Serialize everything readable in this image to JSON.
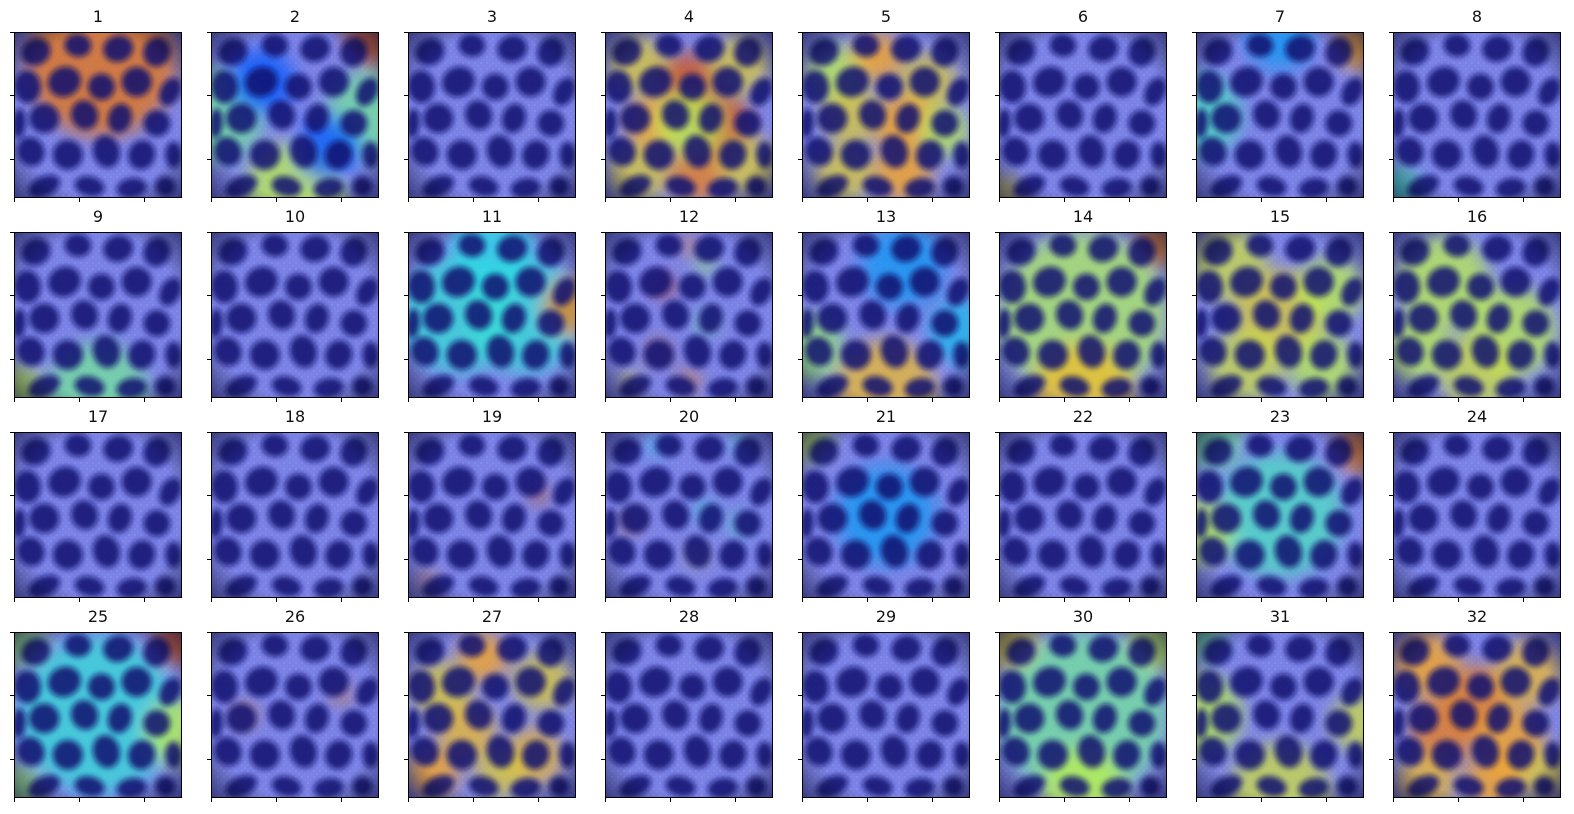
{
  "figure": {
    "panels": [
      {
        "label": "1",
        "heat": [
          [
            0.52,
            0.18,
            0.86,
            0.9
          ]
        ]
      },
      {
        "label": "2",
        "heat": [
          [
            0.04,
            0.5,
            0.5,
            0.55
          ],
          [
            0.96,
            0.5,
            0.5,
            0.55
          ],
          [
            0.5,
            0.96,
            0.6,
            0.6
          ],
          [
            0.98,
            0.03,
            0.9,
            0.35
          ],
          [
            0.3,
            0.3,
            0.2,
            0.4
          ],
          [
            0.7,
            0.7,
            0.2,
            0.4
          ]
        ]
      },
      {
        "label": "3",
        "heat": []
      },
      {
        "label": "4",
        "heat": [
          [
            0.2,
            0.2,
            0.7,
            0.35
          ],
          [
            0.5,
            0.3,
            0.9,
            0.35
          ],
          [
            0.8,
            0.2,
            0.7,
            0.35
          ],
          [
            0.3,
            0.55,
            0.8,
            0.35
          ],
          [
            0.7,
            0.55,
            0.9,
            0.35
          ],
          [
            0.2,
            0.85,
            0.7,
            0.35
          ],
          [
            0.55,
            0.85,
            0.85,
            0.35
          ],
          [
            0.85,
            0.8,
            0.7,
            0.35
          ],
          [
            0.5,
            0.55,
            0.6,
            0.4
          ]
        ]
      },
      {
        "label": "5",
        "heat": [
          [
            0.2,
            0.25,
            0.6,
            0.35
          ],
          [
            0.45,
            0.15,
            0.8,
            0.3
          ],
          [
            0.75,
            0.3,
            0.7,
            0.35
          ],
          [
            0.3,
            0.5,
            0.7,
            0.35
          ],
          [
            0.6,
            0.55,
            0.8,
            0.35
          ],
          [
            0.85,
            0.6,
            0.6,
            0.3
          ],
          [
            0.25,
            0.85,
            0.7,
            0.35
          ],
          [
            0.6,
            0.85,
            0.8,
            0.35
          ]
        ]
      },
      {
        "label": "6",
        "heat": [
          [
            0.03,
            0.97,
            0.7,
            0.2
          ]
        ]
      },
      {
        "label": "7",
        "heat": [
          [
            0.02,
            0.5,
            0.45,
            0.5
          ],
          [
            0.98,
            0.08,
            0.8,
            0.3
          ],
          [
            0.5,
            0.03,
            0.3,
            0.4
          ]
        ]
      },
      {
        "label": "8",
        "heat": [
          [
            0.02,
            0.95,
            0.45,
            0.3
          ]
        ]
      },
      {
        "label": "9",
        "heat": [
          [
            0.5,
            0.97,
            0.5,
            0.6
          ],
          [
            0.03,
            0.95,
            0.6,
            0.3
          ]
        ]
      },
      {
        "label": "10",
        "heat": []
      },
      {
        "label": "11",
        "heat": [
          [
            0.3,
            0.5,
            0.42,
            0.7
          ],
          [
            0.7,
            0.5,
            0.42,
            0.7
          ],
          [
            0.98,
            0.45,
            0.85,
            0.35
          ],
          [
            0.5,
            0.1,
            0.4,
            0.5
          ]
        ]
      },
      {
        "label": "12",
        "heat": [
          [
            0.35,
            0.33,
            0.95,
            0.12
          ],
          [
            0.5,
            0.08,
            0.85,
            0.1
          ],
          [
            0.6,
            0.2,
            0.55,
            0.12
          ],
          [
            0.6,
            0.55,
            0.5,
            0.12
          ],
          [
            0.32,
            0.72,
            0.9,
            0.12
          ],
          [
            0.5,
            0.9,
            0.85,
            0.12
          ],
          [
            0.15,
            0.9,
            0.7,
            0.12
          ]
        ]
      },
      {
        "label": "13",
        "heat": [
          [
            0.5,
            0.95,
            0.75,
            0.6
          ],
          [
            0.05,
            0.7,
            0.55,
            0.4
          ],
          [
            0.6,
            0.2,
            0.3,
            0.5
          ],
          [
            0.95,
            0.6,
            0.35,
            0.4
          ]
        ]
      },
      {
        "label": "14",
        "heat": [
          [
            0.5,
            0.5,
            0.58,
            1.0
          ],
          [
            0.98,
            0.05,
            0.85,
            0.3
          ],
          [
            0.5,
            0.97,
            0.75,
            0.6
          ]
        ]
      },
      {
        "label": "15",
        "heat": [
          [
            0.2,
            0.2,
            0.65,
            0.45
          ],
          [
            0.5,
            0.5,
            0.7,
            0.55
          ],
          [
            0.8,
            0.35,
            0.6,
            0.4
          ],
          [
            0.3,
            0.8,
            0.65,
            0.45
          ],
          [
            0.75,
            0.8,
            0.6,
            0.4
          ]
        ]
      },
      {
        "label": "16",
        "heat": [
          [
            0.3,
            0.3,
            0.6,
            0.55
          ],
          [
            0.7,
            0.6,
            0.6,
            0.55
          ],
          [
            0.5,
            0.85,
            0.65,
            0.45
          ],
          [
            0.15,
            0.7,
            0.6,
            0.4
          ]
        ]
      },
      {
        "label": "17",
        "heat": []
      },
      {
        "label": "18",
        "heat": []
      },
      {
        "label": "19",
        "heat": [
          [
            0.78,
            0.38,
            0.9,
            0.1
          ],
          [
            0.12,
            0.9,
            0.85,
            0.1
          ]
        ]
      },
      {
        "label": "20",
        "heat": [
          [
            0.6,
            0.48,
            0.42,
            0.12
          ],
          [
            0.8,
            0.56,
            0.45,
            0.12
          ],
          [
            0.15,
            0.55,
            0.85,
            0.1
          ],
          [
            0.55,
            0.75,
            0.7,
            0.1
          ],
          [
            0.8,
            0.06,
            0.45,
            0.1
          ],
          [
            0.3,
            0.08,
            0.4,
            0.1
          ]
        ]
      },
      {
        "label": "21",
        "heat": [
          [
            0.05,
            0.05,
            0.6,
            0.25
          ],
          [
            0.5,
            0.5,
            0.3,
            0.6
          ]
        ]
      },
      {
        "label": "22",
        "heat": []
      },
      {
        "label": "23",
        "heat": [
          [
            0.5,
            0.5,
            0.45,
            0.75
          ],
          [
            0.02,
            0.6,
            0.6,
            0.4
          ],
          [
            0.98,
            0.1,
            0.85,
            0.3
          ],
          [
            0.1,
            0.05,
            0.5,
            0.35
          ]
        ]
      },
      {
        "label": "24",
        "heat": []
      },
      {
        "label": "25",
        "heat": [
          [
            0.5,
            0.5,
            0.42,
            0.95
          ],
          [
            0.04,
            0.05,
            0.55,
            0.3
          ],
          [
            0.98,
            0.05,
            0.9,
            0.3
          ],
          [
            0.02,
            0.95,
            0.55,
            0.3
          ],
          [
            0.98,
            0.6,
            0.6,
            0.4
          ]
        ]
      },
      {
        "label": "26",
        "heat": [
          [
            0.2,
            0.5,
            0.85,
            0.12
          ],
          [
            0.78,
            0.38,
            0.85,
            0.1
          ]
        ]
      },
      {
        "label": "27",
        "heat": [
          [
            0.2,
            0.35,
            0.7,
            0.35
          ],
          [
            0.45,
            0.15,
            0.8,
            0.3
          ],
          [
            0.8,
            0.3,
            0.7,
            0.35
          ],
          [
            0.35,
            0.6,
            0.75,
            0.35
          ],
          [
            0.75,
            0.75,
            0.75,
            0.35
          ],
          [
            0.15,
            0.85,
            0.8,
            0.3
          ],
          [
            0.55,
            0.85,
            0.7,
            0.3
          ]
        ]
      },
      {
        "label": "28",
        "heat": []
      },
      {
        "label": "29",
        "heat": []
      },
      {
        "label": "30",
        "heat": [
          [
            0.5,
            0.5,
            0.5,
            1.0
          ],
          [
            0.05,
            0.05,
            0.7,
            0.35
          ],
          [
            0.95,
            0.05,
            0.6,
            0.35
          ],
          [
            0.5,
            0.95,
            0.6,
            0.5
          ]
        ]
      },
      {
        "label": "31",
        "heat": [
          [
            0.03,
            0.5,
            0.6,
            0.5
          ],
          [
            0.5,
            0.97,
            0.65,
            0.6
          ],
          [
            0.98,
            0.55,
            0.65,
            0.35
          ],
          [
            0.02,
            0.02,
            0.5,
            0.3
          ]
        ]
      },
      {
        "label": "32",
        "heat": [
          [
            0.2,
            0.2,
            0.8,
            0.4
          ],
          [
            0.5,
            0.4,
            0.85,
            0.4
          ],
          [
            0.8,
            0.25,
            0.75,
            0.4
          ],
          [
            0.3,
            0.6,
            0.85,
            0.4
          ],
          [
            0.7,
            0.65,
            0.8,
            0.4
          ],
          [
            0.2,
            0.9,
            0.75,
            0.35
          ],
          [
            0.6,
            0.9,
            0.8,
            0.35
          ],
          [
            0.9,
            0.85,
            0.7,
            0.3
          ]
        ]
      }
    ],
    "colors": {
      "base": "#7b82e6",
      "blob": "#0a0f6e",
      "speckle": "#c9cde8",
      "frame": "#000000"
    }
  }
}
